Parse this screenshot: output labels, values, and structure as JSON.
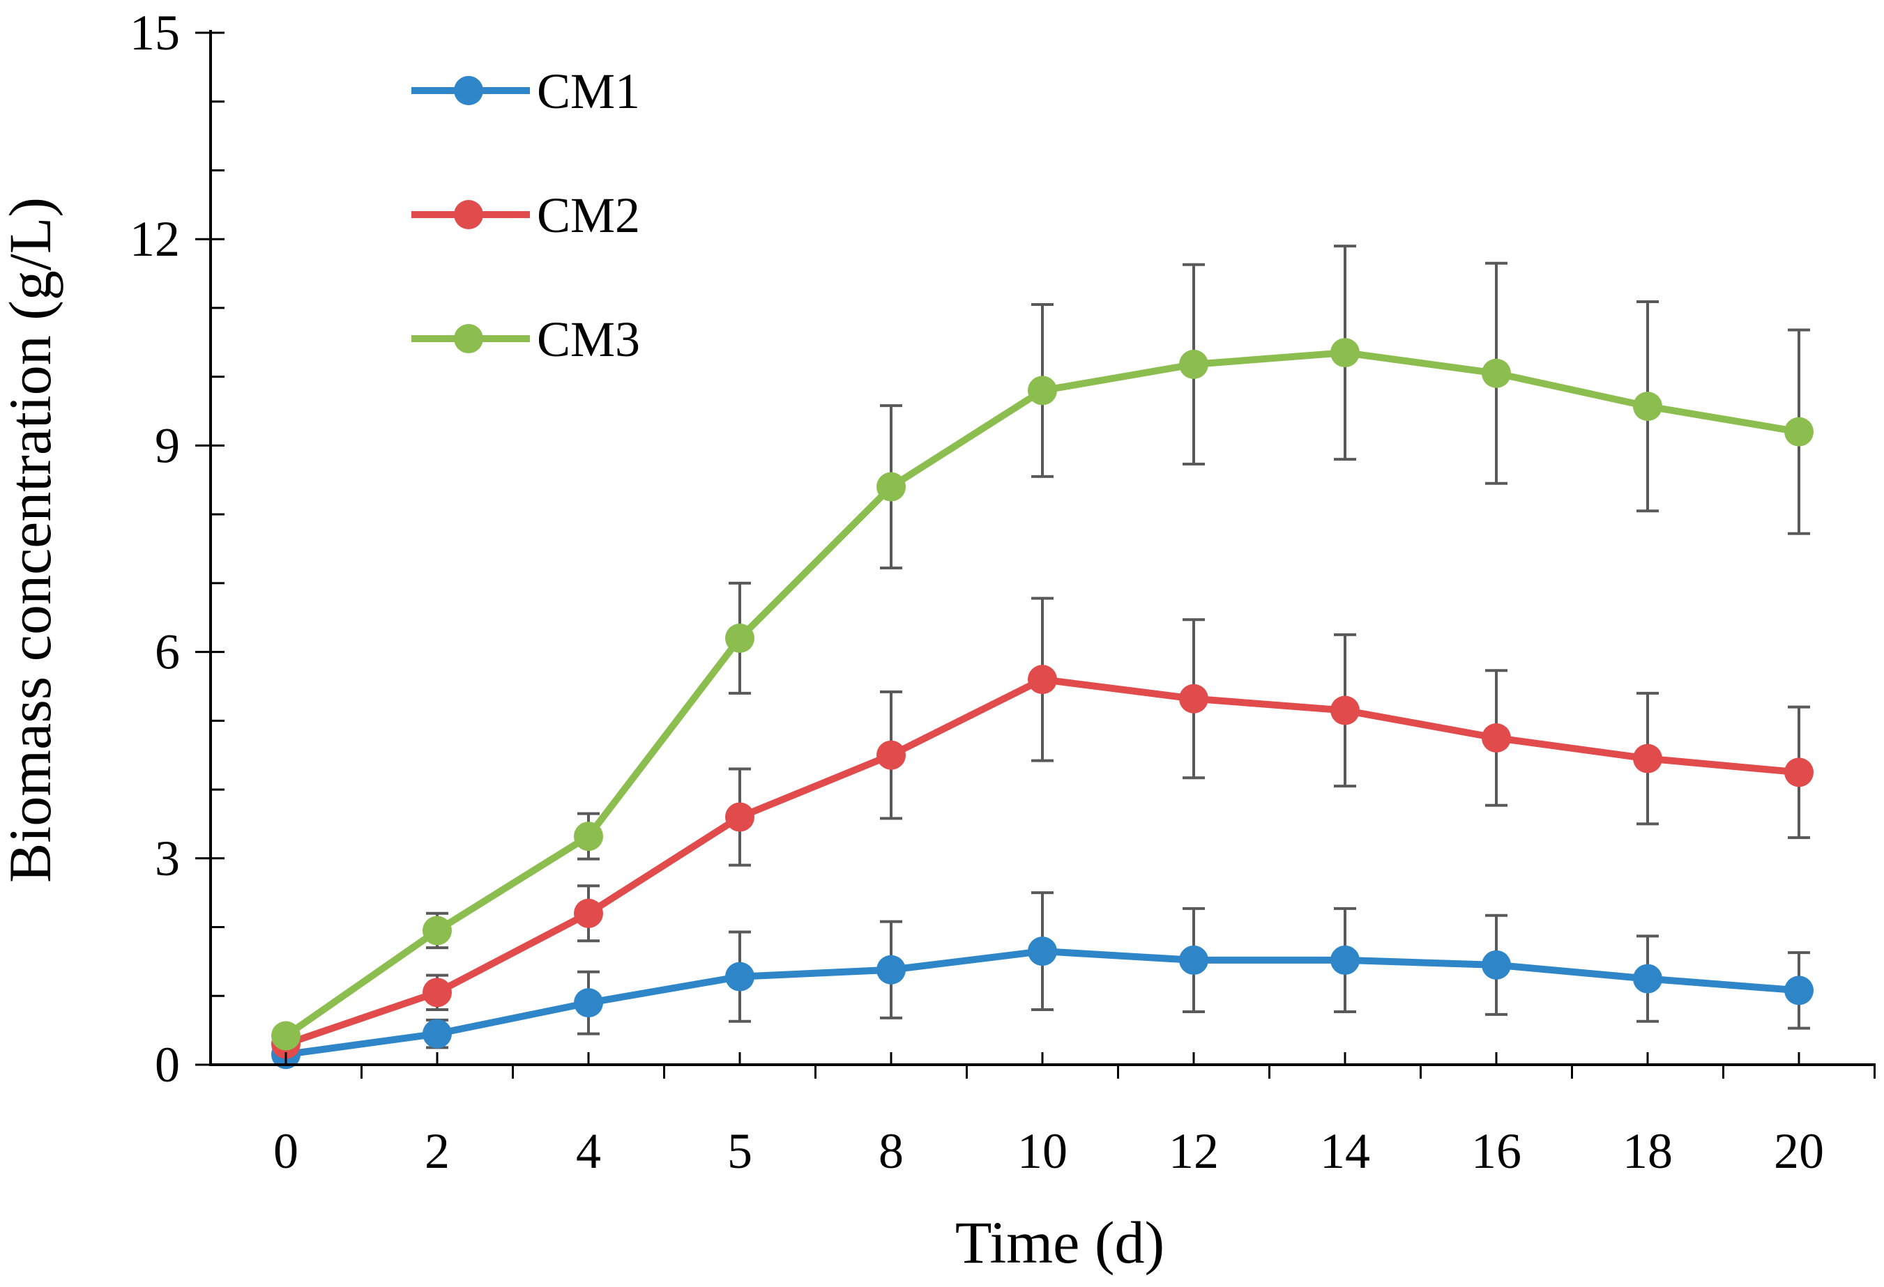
{
  "chart_data": {
    "type": "line",
    "title": "",
    "xlabel": "Time (d)",
    "ylabel": "Biomass concentration (g/L)",
    "categories": [
      "0",
      "2",
      "4",
      "5",
      "8",
      "10",
      "12",
      "14",
      "16",
      "18",
      "20"
    ],
    "ylim": [
      0,
      15
    ],
    "yticks": [
      0,
      3,
      6,
      9,
      12,
      15
    ],
    "y_minor_step": 1,
    "grid": false,
    "legend_position": "top-left",
    "error_bar_color": "#595959",
    "series": [
      {
        "name": "CM1",
        "color": "#2E86C8",
        "values": [
          0.15,
          0.45,
          0.9,
          1.28,
          1.38,
          1.65,
          1.52,
          1.52,
          1.45,
          1.25,
          1.08
        ],
        "errors": [
          0.1,
          0.2,
          0.45,
          0.65,
          0.7,
          0.85,
          0.75,
          0.75,
          0.72,
          0.62,
          0.55
        ]
      },
      {
        "name": "CM2",
        "color": "#E24B4B",
        "values": [
          0.3,
          1.05,
          2.2,
          3.6,
          4.5,
          5.6,
          5.32,
          5.15,
          4.75,
          4.45,
          4.25
        ],
        "errors": [
          0.1,
          0.25,
          0.4,
          0.7,
          0.92,
          1.18,
          1.15,
          1.1,
          0.98,
          0.95,
          0.95
        ]
      },
      {
        "name": "CM3",
        "color": "#8CBD4F",
        "values": [
          0.42,
          1.95,
          3.32,
          6.2,
          8.4,
          9.8,
          10.18,
          10.35,
          10.05,
          9.57,
          9.2
        ],
        "errors": [
          0.1,
          0.25,
          0.33,
          0.8,
          1.18,
          1.25,
          1.45,
          1.55,
          1.6,
          1.52,
          1.48
        ]
      }
    ]
  }
}
